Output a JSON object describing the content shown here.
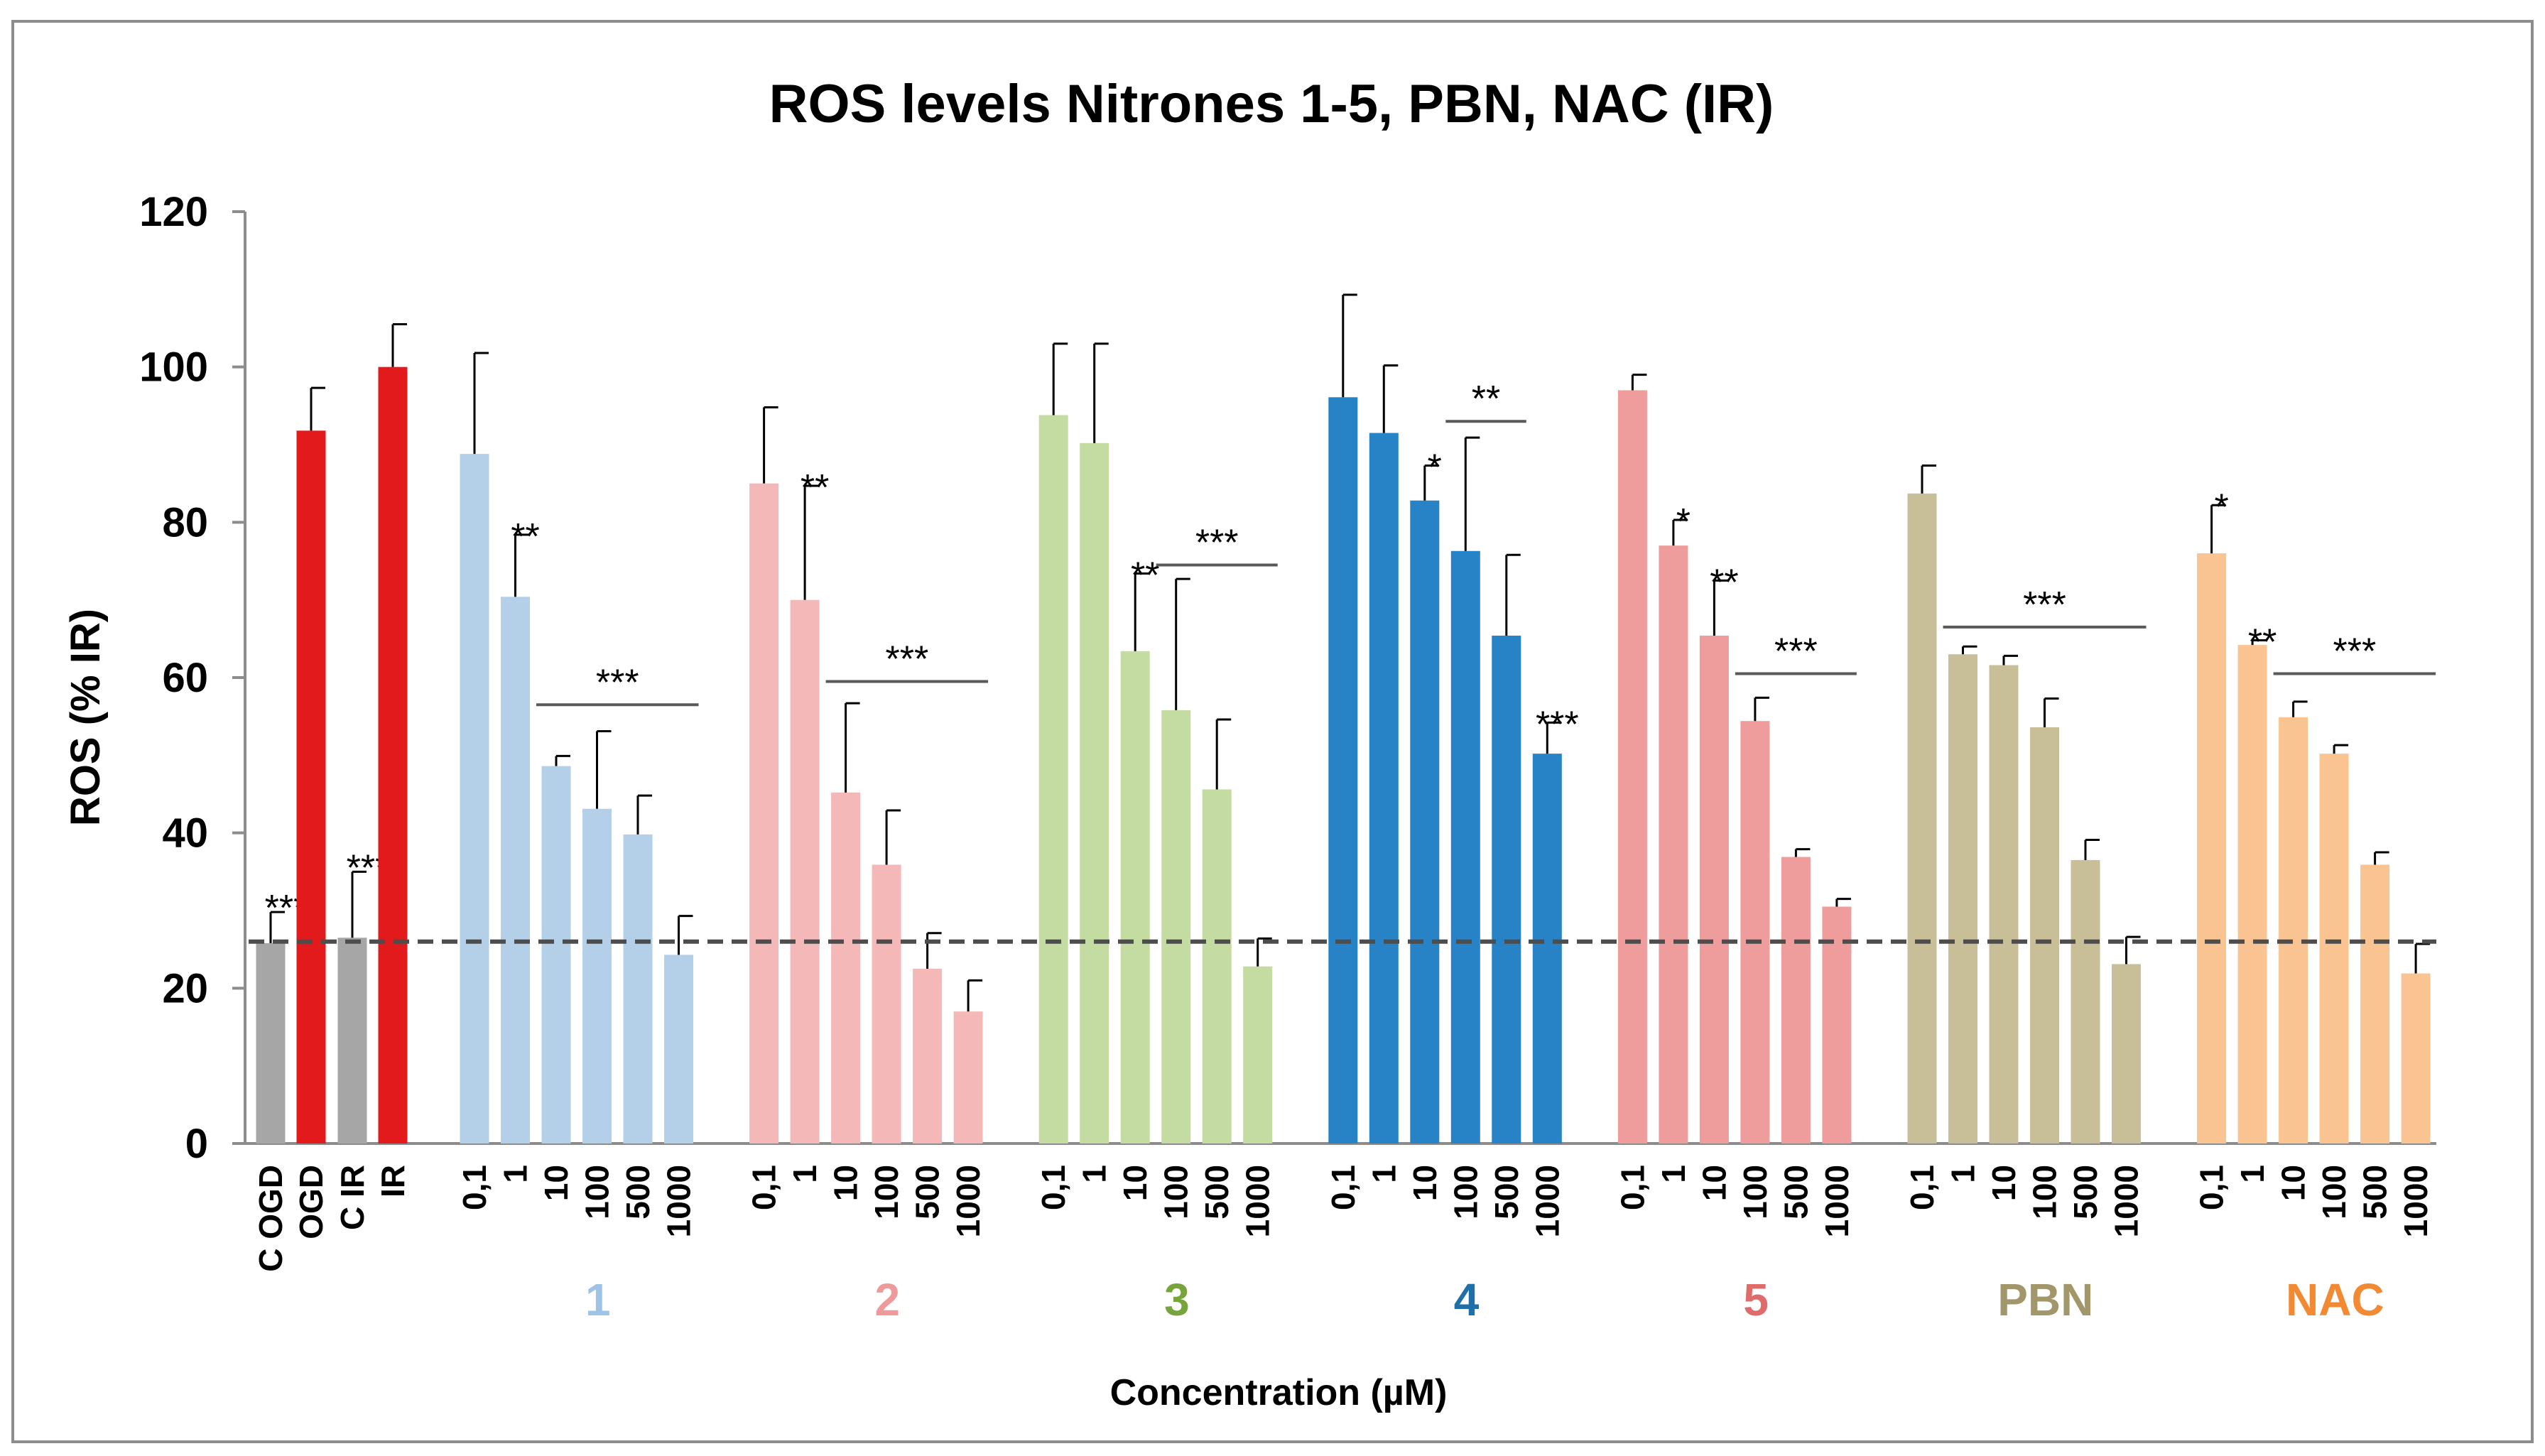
{
  "chart_data": {
    "type": "bar",
    "title": "ROS levels Nitrones 1-5, PBN, NAC (IR)",
    "ylabel": "ROS (% IR)",
    "xlabel": "Concentration (µM)",
    "ylim": [
      0,
      120
    ],
    "yticks": [
      "0",
      "20",
      "40",
      "60",
      "80",
      "100",
      "120"
    ],
    "reference_line": {
      "value": 26,
      "style": "dashed"
    },
    "controls": [
      {
        "label": "C OGD",
        "value": 25.8,
        "error": 4,
        "color": "#a6a6a6",
        "sig": "***"
      },
      {
        "label": "OGD",
        "value": 91.8,
        "error": 5.5,
        "color": "#e31a1c",
        "sig": ""
      },
      {
        "label": "C IR",
        "value": 26.5,
        "error": 8.5,
        "color": "#a6a6a6",
        "sig": "***"
      },
      {
        "label": "IR",
        "value": 100,
        "error": 5.5,
        "color": "#e31a1c",
        "sig": ""
      }
    ],
    "concentrations": [
      "0,1",
      "1",
      "10",
      "100",
      "500",
      "1000"
    ],
    "groups": [
      {
        "name": "1",
        "bar_color": "#b4cfe8",
        "label_color": "#9dc3e6",
        "values": [
          88.8,
          70.4,
          48.6,
          43.1,
          39.8,
          24.3
        ],
        "errors": [
          13,
          8,
          1.3,
          10,
          5,
          5
        ],
        "sig": [
          "",
          "**",
          "",
          "",
          "",
          ""
        ],
        "bracket": {
          "from": 2,
          "to": 5,
          "y": 56.5,
          "text": "***"
        }
      },
      {
        "name": "2",
        "bar_color": "#f4b8b8",
        "label_color": "#ee9a9a",
        "values": [
          85,
          70,
          45.2,
          35.9,
          22.5,
          17
        ],
        "errors": [
          9.8,
          14.7,
          11.5,
          7,
          4.6,
          4
        ],
        "sig": [
          "",
          "**",
          "",
          "",
          "",
          ""
        ],
        "bracket": {
          "from": 2,
          "to": 5,
          "y": 59.5,
          "text": "***"
        }
      },
      {
        "name": "3",
        "bar_color": "#c4dba1",
        "label_color": "#77a43b",
        "values": [
          93.8,
          90.2,
          63.4,
          55.8,
          45.6,
          22.8
        ],
        "errors": [
          9.2,
          12.8,
          10,
          16.9,
          9,
          3.6
        ],
        "sig": [
          "",
          "",
          "**",
          "",
          "",
          ""
        ],
        "bracket": {
          "from": 3,
          "to": 5,
          "y": 74.5,
          "text": "***"
        }
      },
      {
        "name": "4",
        "bar_color": "#2782c6",
        "label_color": "#1f6fa8",
        "values": [
          96.1,
          91.5,
          82.8,
          76.3,
          65.4,
          50.2
        ],
        "errors": [
          13.2,
          8.7,
          4.5,
          14.6,
          10.4,
          4
        ],
        "sig": [
          "",
          "",
          "*",
          "",
          "",
          "***"
        ],
        "bracket": {
          "from": 3,
          "to": 4,
          "y": 93,
          "text": "**"
        }
      },
      {
        "name": "5",
        "bar_color": "#ef9c9c",
        "label_color": "#e06b6b",
        "values": [
          97,
          77,
          65.4,
          54.4,
          36.9,
          30.5
        ],
        "errors": [
          2,
          3.3,
          7.1,
          3,
          1,
          1
        ],
        "sig": [
          "",
          "*",
          "**",
          "",
          "",
          ""
        ],
        "bracket": {
          "from": 3,
          "to": 5,
          "y": 60.5,
          "text": "***"
        }
      },
      {
        "name": "PBN",
        "bar_color": "#c8bf99",
        "label_color": "#a1976a",
        "values": [
          83.7,
          63,
          61.6,
          53.6,
          36.5,
          23.1
        ],
        "errors": [
          3.6,
          1,
          1.2,
          3.7,
          2.6,
          3.5
        ],
        "sig": [
          "",
          "",
          "",
          "",
          "",
          ""
        ],
        "bracket": {
          "from": 1,
          "to": 5,
          "y": 66.5,
          "text": "***"
        }
      },
      {
        "name": "NAC",
        "bar_color": "#f9c491",
        "label_color": "#f28a33",
        "values": [
          76,
          64.2,
          54.9,
          50.2,
          35.9,
          21.9
        ],
        "errors": [
          6.2,
          0.6,
          2,
          1.1,
          1.6,
          3.8
        ],
        "sig": [
          "*",
          "**",
          "",
          "",
          "",
          ""
        ],
        "bracket": {
          "from": 2,
          "to": 5,
          "y": 60.5,
          "text": "***"
        }
      }
    ]
  }
}
